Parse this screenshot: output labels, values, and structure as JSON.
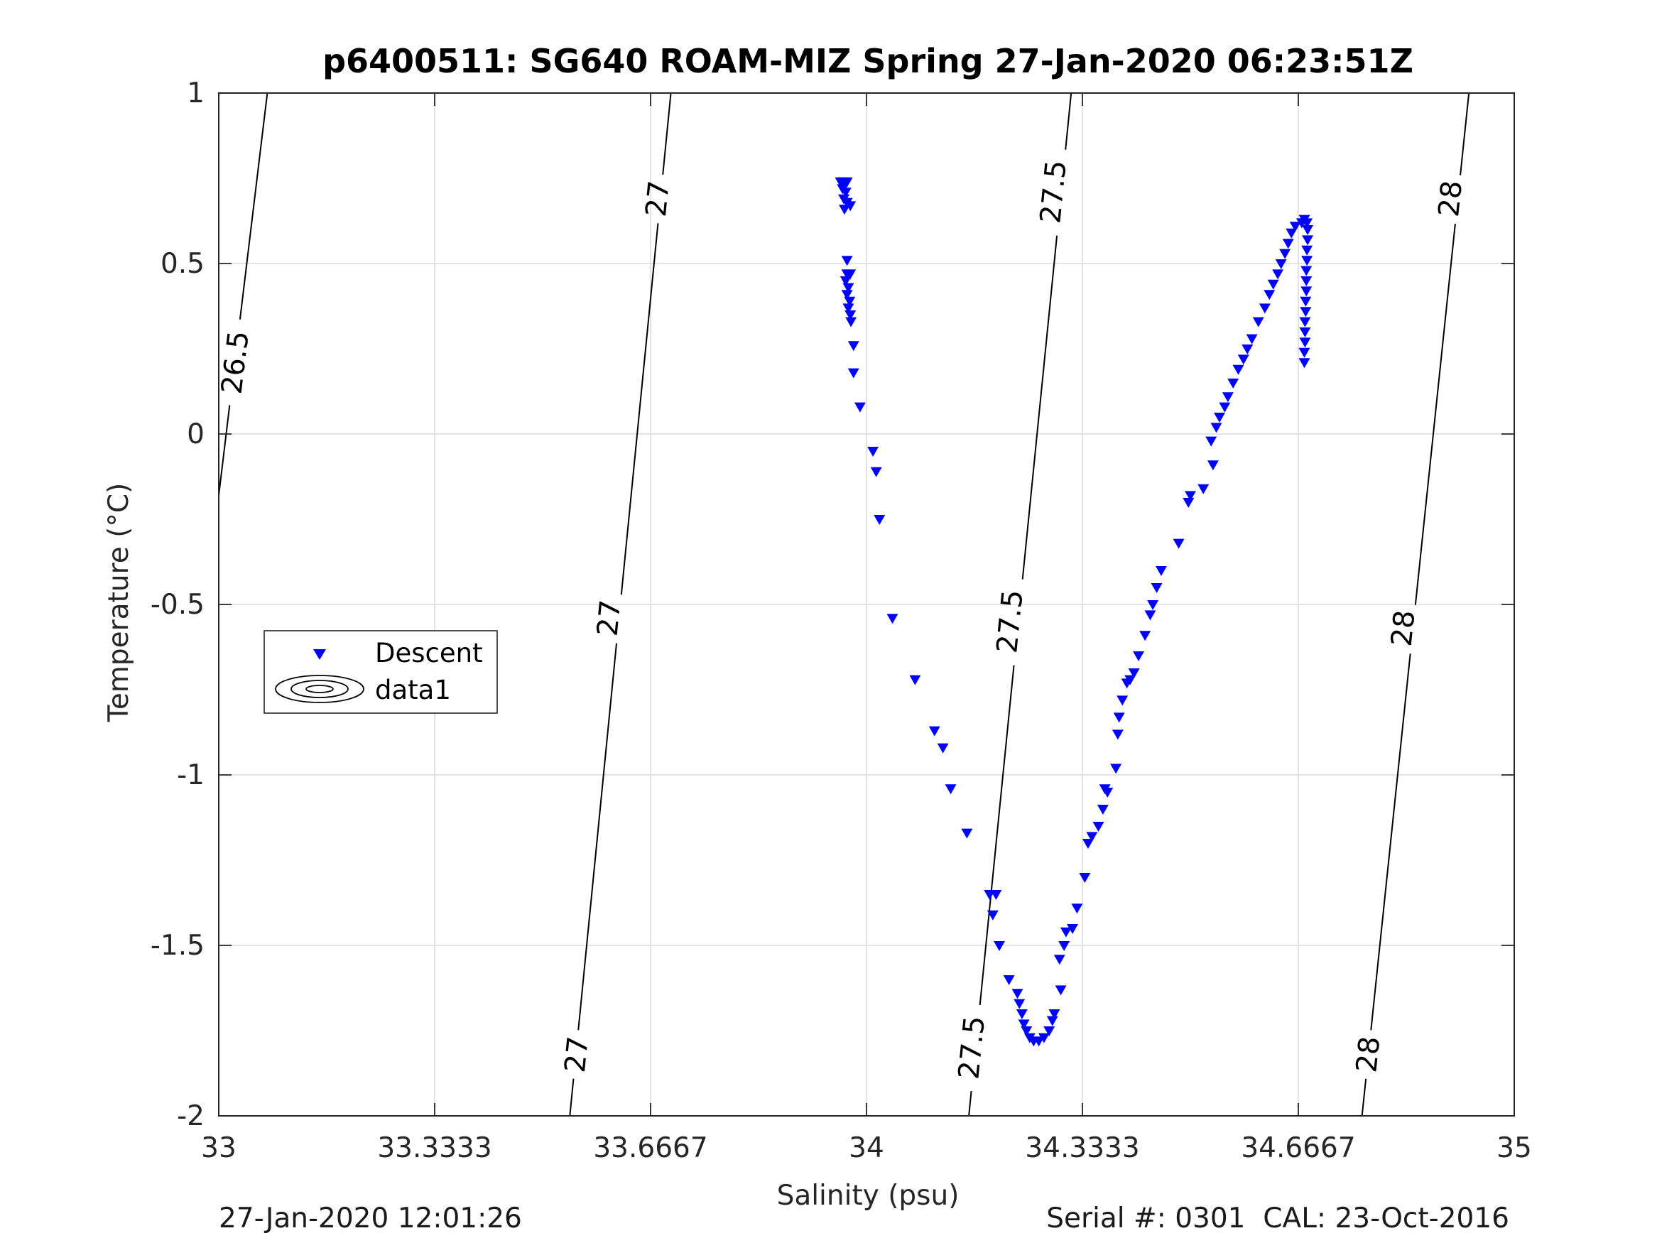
{
  "chart_data": {
    "type": "scatter",
    "title": "p6400511: SG640 ROAM-MIZ Spring 27-Jan-2020 06:23:51Z",
    "xlabel": "Salinity (psu)",
    "ylabel": "Temperature (°C)",
    "xlim": [
      33,
      35
    ],
    "ylim": [
      -2,
      1
    ],
    "x_ticks": [
      "33",
      "33.3333",
      "33.6667",
      "34",
      "34.3333",
      "34.6667",
      "35"
    ],
    "y_ticks": [
      "1",
      "0.5",
      "0",
      "-0.5",
      "-1",
      "-1.5",
      "-2"
    ],
    "grid": true,
    "legend": {
      "placement": "left-middle",
      "entries": [
        "Descent",
        "data1"
      ]
    },
    "series": [
      {
        "name": "Descent",
        "marker": "triangle-down",
        "color": "#0000ff",
        "points": [
          [
            33.96,
            0.74
          ],
          [
            33.965,
            0.74
          ],
          [
            33.97,
            0.74
          ],
          [
            33.963,
            0.72
          ],
          [
            33.968,
            0.71
          ],
          [
            33.965,
            0.69
          ],
          [
            33.97,
            0.68
          ],
          [
            33.975,
            0.67
          ],
          [
            33.966,
            0.66
          ],
          [
            33.97,
            0.51
          ],
          [
            33.97,
            0.47
          ],
          [
            33.975,
            0.47
          ],
          [
            33.968,
            0.45
          ],
          [
            33.972,
            0.43
          ],
          [
            33.97,
            0.41
          ],
          [
            33.974,
            0.39
          ],
          [
            33.972,
            0.37
          ],
          [
            33.975,
            0.35
          ],
          [
            33.976,
            0.33
          ],
          [
            33.98,
            0.26
          ],
          [
            33.98,
            0.18
          ],
          [
            33.99,
            0.08
          ],
          [
            34.01,
            -0.05
          ],
          [
            34.015,
            -0.11
          ],
          [
            34.02,
            -0.25
          ],
          [
            34.04,
            -0.54
          ],
          [
            34.075,
            -0.72
          ],
          [
            34.105,
            -0.87
          ],
          [
            34.118,
            -0.92
          ],
          [
            34.13,
            -1.04
          ],
          [
            34.155,
            -1.17
          ],
          [
            34.19,
            -1.35
          ],
          [
            34.2,
            -1.35
          ],
          [
            34.195,
            -1.41
          ],
          [
            34.205,
            -1.5
          ],
          [
            34.22,
            -1.6
          ],
          [
            34.233,
            -1.64
          ],
          [
            34.236,
            -1.67
          ],
          [
            34.24,
            -1.7
          ],
          [
            34.243,
            -1.73
          ],
          [
            34.247,
            -1.75
          ],
          [
            34.252,
            -1.77
          ],
          [
            34.258,
            -1.78
          ],
          [
            34.266,
            -1.78
          ],
          [
            34.274,
            -1.77
          ],
          [
            34.282,
            -1.75
          ],
          [
            34.287,
            -1.72
          ],
          [
            34.29,
            -1.7
          ],
          [
            34.3,
            -1.63
          ],
          [
            34.298,
            -1.54
          ],
          [
            34.305,
            -1.5
          ],
          [
            34.308,
            -1.46
          ],
          [
            34.318,
            -1.45
          ],
          [
            34.325,
            -1.39
          ],
          [
            34.337,
            -1.3
          ],
          [
            34.342,
            -1.2
          ],
          [
            34.348,
            -1.18
          ],
          [
            34.358,
            -1.15
          ],
          [
            34.365,
            -1.1
          ],
          [
            34.372,
            -1.05
          ],
          [
            34.368,
            -1.04
          ],
          [
            34.385,
            -0.98
          ],
          [
            34.39,
            -0.83
          ],
          [
            34.388,
            -0.88
          ],
          [
            34.395,
            -0.78
          ],
          [
            34.402,
            -0.73
          ],
          [
            34.407,
            -0.72
          ],
          [
            34.413,
            -0.7
          ],
          [
            34.42,
            -0.65
          ],
          [
            34.43,
            -0.59
          ],
          [
            34.438,
            -0.53
          ],
          [
            34.442,
            -0.5
          ],
          [
            34.448,
            -0.45
          ],
          [
            34.455,
            -0.4
          ],
          [
            34.482,
            -0.32
          ],
          [
            34.497,
            -0.2
          ],
          [
            34.5,
            -0.18
          ],
          [
            34.52,
            -0.16
          ],
          [
            34.535,
            -0.09
          ],
          [
            34.532,
            -0.02
          ],
          [
            34.54,
            0.02
          ],
          [
            34.545,
            0.05
          ],
          [
            34.553,
            0.08
          ],
          [
            34.558,
            0.11
          ],
          [
            34.566,
            0.15
          ],
          [
            34.574,
            0.19
          ],
          [
            34.582,
            0.22
          ],
          [
            34.588,
            0.25
          ],
          [
            34.595,
            0.28
          ],
          [
            34.605,
            0.33
          ],
          [
            34.615,
            0.37
          ],
          [
            34.622,
            0.41
          ],
          [
            34.628,
            0.44
          ],
          [
            34.635,
            0.47
          ],
          [
            34.64,
            0.5
          ],
          [
            34.646,
            0.53
          ],
          [
            34.651,
            0.56
          ],
          [
            34.656,
            0.59
          ],
          [
            34.662,
            0.61
          ],
          [
            34.672,
            0.62
          ],
          [
            34.676,
            0.63
          ],
          [
            34.68,
            0.62
          ],
          [
            34.681,
            0.6
          ],
          [
            34.681,
            0.57
          ],
          [
            34.68,
            0.54
          ],
          [
            34.68,
            0.51
          ],
          [
            34.679,
            0.48
          ],
          [
            34.679,
            0.45
          ],
          [
            34.679,
            0.42
          ],
          [
            34.678,
            0.39
          ],
          [
            34.678,
            0.36
          ],
          [
            34.677,
            0.33
          ],
          [
            34.677,
            0.3
          ],
          [
            34.677,
            0.27
          ],
          [
            34.676,
            0.24
          ],
          [
            34.676,
            0.21
          ]
        ]
      },
      {
        "name": "data1",
        "type": "contour",
        "color": "#000000",
        "levels": [
          {
            "value": 26.5,
            "line": [
              [
                33.0,
                -0.18
              ],
              [
                33.075,
                1.0
              ]
            ],
            "labels": [
              {
                "text": "26.5",
                "s": 33.026,
                "t": 0.21
              }
            ]
          },
          {
            "value": 27,
            "line": [
              [
                33.542,
                -2.0
              ],
              [
                33.698,
                1.0
              ]
            ],
            "labels": [
              {
                "text": "27",
                "s": 33.553,
                "t": -1.82
              },
              {
                "text": "27",
                "s": 33.603,
                "t": -0.54
              },
              {
                "text": "27",
                "s": 33.678,
                "t": 0.69
              }
            ]
          },
          {
            "value": 27.5,
            "line": [
              [
                34.158,
                -2.0
              ],
              [
                34.316,
                1.0
              ]
            ],
            "labels": [
              {
                "text": "27.5",
                "s": 34.163,
                "t": -1.8
              },
              {
                "text": "27.5",
                "s": 34.222,
                "t": -0.55
              },
              {
                "text": "27.5",
                "s": 34.289,
                "t": 0.71
              }
            ]
          },
          {
            "value": 28,
            "line": [
              [
                34.765,
                -2.0
              ],
              [
                34.93,
                1.0
              ]
            ],
            "labels": [
              {
                "text": "28",
                "s": 34.775,
                "t": -1.82
              },
              {
                "text": "28",
                "s": 34.829,
                "t": -0.57
              },
              {
                "text": "28",
                "s": 34.902,
                "t": 0.69
              }
            ]
          }
        ]
      }
    ]
  },
  "footer": {
    "left": "27-Jan-2020 12:01:26",
    "right": "Serial #: 0301  CAL: 23-Oct-2016"
  }
}
